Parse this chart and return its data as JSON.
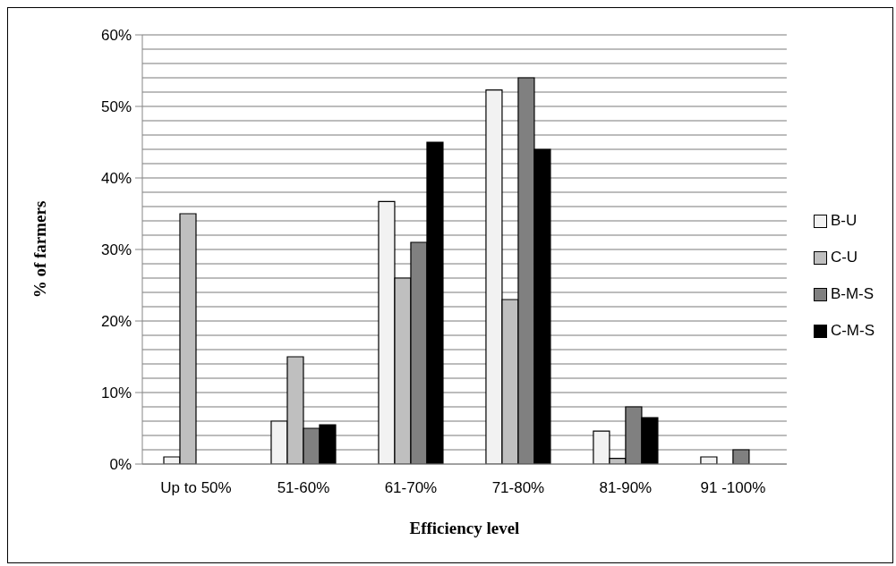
{
  "chart_data": {
    "type": "bar",
    "xlabel": "Efficiency level",
    "ylabel": "%  of farmers",
    "categories": [
      "Up to 50%",
      "51-60%",
      "61-70%",
      "71-80%",
      "81-90%",
      "91 -100%"
    ],
    "series": [
      {
        "name": "B-U",
        "color": "#f2f2f2",
        "values": [
          1,
          6,
          36.7,
          52.3,
          4.6,
          1
        ]
      },
      {
        "name": "C-U",
        "color": "#bfbfbf",
        "values": [
          35,
          15,
          26,
          23,
          0.8,
          null
        ]
      },
      {
        "name": "B-M-S",
        "color": "#808080",
        "values": [
          null,
          5,
          31,
          54,
          8,
          2
        ]
      },
      {
        "name": "C-M-S",
        "color": "#000000",
        "values": [
          null,
          5.5,
          45,
          44,
          6.5,
          null
        ]
      }
    ],
    "ylim": [
      0,
      60
    ],
    "yticks": [
      {
        "value": 0,
        "label": "0%"
      },
      {
        "value": 2,
        "label": null
      },
      {
        "value": 4,
        "label": null
      },
      {
        "value": 6,
        "label": null
      },
      {
        "value": 8,
        "label": null
      },
      {
        "value": 10,
        "label": "10%"
      },
      {
        "value": 12,
        "label": null
      },
      {
        "value": 14,
        "label": null
      },
      {
        "value": 16,
        "label": null
      },
      {
        "value": 18,
        "label": null
      },
      {
        "value": 20,
        "label": "20%"
      },
      {
        "value": 22,
        "label": null
      },
      {
        "value": 24,
        "label": null
      },
      {
        "value": 26,
        "label": null
      },
      {
        "value": 28,
        "label": null
      },
      {
        "value": 30,
        "label": "30%"
      },
      {
        "value": 32,
        "label": null
      },
      {
        "value": 34,
        "label": null
      },
      {
        "value": 36,
        "label": null
      },
      {
        "value": 38,
        "label": null
      },
      {
        "value": 40,
        "label": "40%"
      },
      {
        "value": 42,
        "label": null
      },
      {
        "value": 44,
        "label": null
      },
      {
        "value": 46,
        "label": null
      },
      {
        "value": 48,
        "label": null
      },
      {
        "value": 50,
        "label": "50%"
      },
      {
        "value": 52,
        "label": null
      },
      {
        "value": 54,
        "label": null
      },
      {
        "value": 56,
        "label": null
      },
      {
        "value": 58,
        "label": null
      },
      {
        "value": 60,
        "label": "60%"
      }
    ],
    "grid": "y",
    "legend": "right"
  }
}
